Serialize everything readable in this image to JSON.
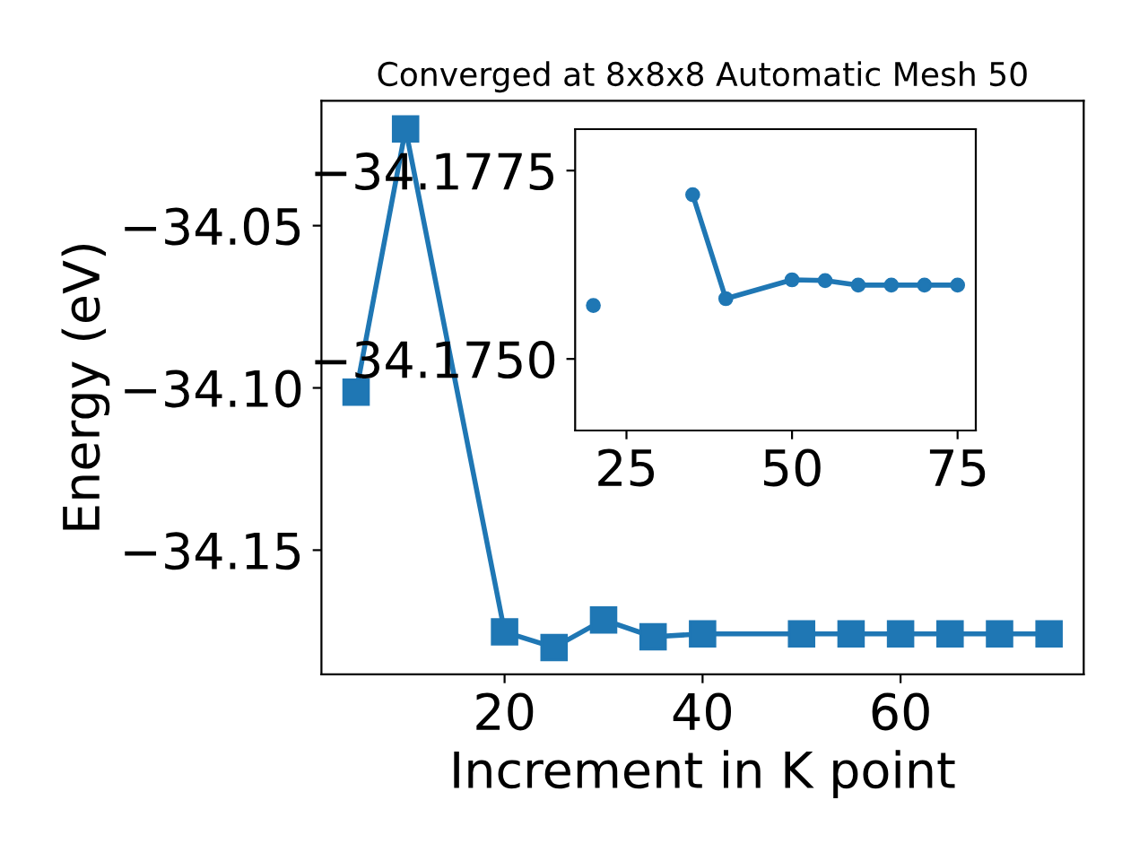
{
  "chart_data": [
    {
      "type": "line",
      "title": "Converged at 8x8x8 Automatic Mesh 50",
      "xlabel": "Increment in K point",
      "ylabel": "Energy (eV)",
      "marker": "square",
      "color": "#1f77b4",
      "grid": false,
      "legend": false,
      "x": [
        5,
        10,
        20,
        25,
        30,
        35,
        40,
        50,
        55,
        60,
        65,
        70,
        75
      ],
      "values": [
        -34.1013,
        -34.0202,
        -34.1752,
        -34.18,
        -34.1715,
        -34.1767,
        -34.1758,
        -34.1758,
        -34.1758,
        -34.1758,
        -34.1758,
        -34.1758,
        -34.1758
      ],
      "xlim": [
        1.5,
        78.5
      ],
      "ylim": [
        -34.1883,
        -34.0115
      ],
      "xticks": [
        20,
        40,
        60
      ],
      "yticks": [
        {
          "value": -34.15,
          "label": "−34.15"
        },
        {
          "value": -34.1,
          "label": "−34.10"
        },
        {
          "value": -34.05,
          "label": "−34.05"
        }
      ]
    },
    {
      "type": "line",
      "marker": "circle",
      "color": "#1f77b4",
      "grid": false,
      "legend": false,
      "x": [
        20,
        25,
        30,
        35,
        40,
        50,
        55,
        60,
        65,
        70,
        75
      ],
      "values": [
        -34.17571,
        null,
        null,
        -34.17718,
        -34.1758,
        -34.17605,
        -34.17604,
        -34.17598,
        -34.17598,
        -34.17598,
        -34.17598
      ],
      "xlim": [
        17.25,
        77.75
      ],
      "ylim": [
        -34.17405,
        -34.17805
      ],
      "xticks": [
        25,
        50,
        75
      ],
      "yticks": [
        {
          "value": -34.175,
          "label": "−34.1750"
        },
        {
          "value": -34.1775,
          "label": "−34.1775"
        }
      ]
    }
  ]
}
